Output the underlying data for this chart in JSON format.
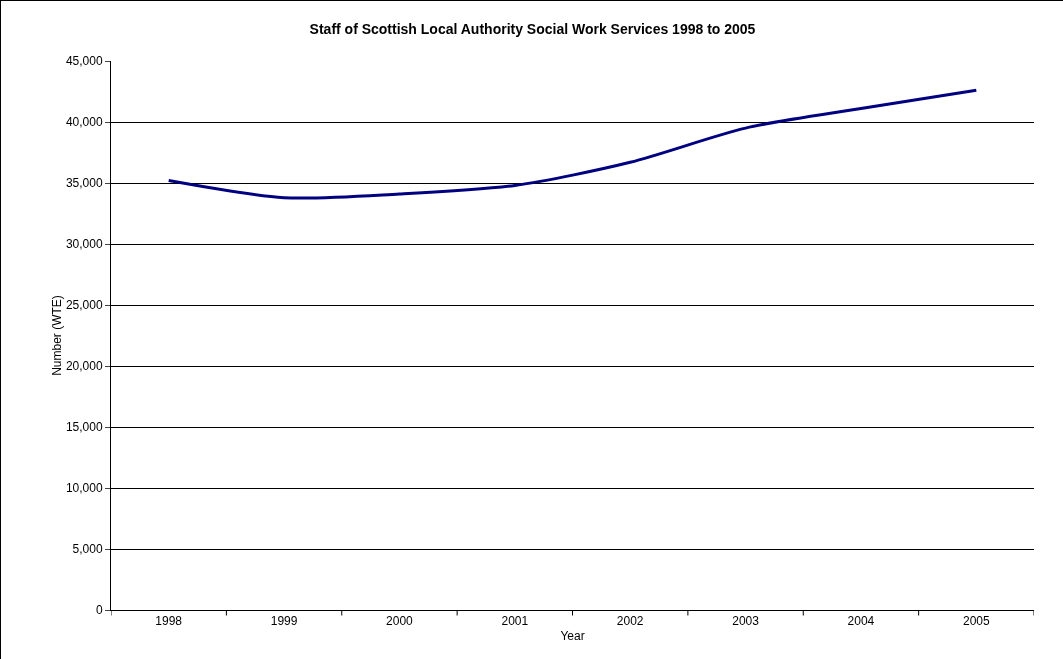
{
  "chart_data": {
    "type": "line",
    "title": "Staff of Scottish Local Authority Social Work Services 1998 to 2005",
    "xlabel": "Year",
    "ylabel": "Number (WTE)",
    "categories": [
      "1998",
      "1999",
      "2000",
      "2001",
      "2002",
      "2003",
      "2004",
      "2005"
    ],
    "series": [
      {
        "color": "#000080",
        "values": [
          35200,
          33800,
          34100,
          34800,
          36700,
          39500,
          41100,
          42600
        ]
      }
    ],
    "ylim": [
      0,
      45000
    ],
    "yticks": [
      {
        "value": 0,
        "label": "0"
      },
      {
        "value": 5000,
        "label": "5,000"
      },
      {
        "value": 10000,
        "label": "10,000"
      },
      {
        "value": 15000,
        "label": "15,000"
      },
      {
        "value": 20000,
        "label": "20,000"
      },
      {
        "value": 25000,
        "label": "25,000"
      },
      {
        "value": 30000,
        "label": "30,000"
      },
      {
        "value": 35000,
        "label": "35,000"
      },
      {
        "value": 40000,
        "label": "40,000"
      },
      {
        "value": 45000,
        "label": "45,000"
      }
    ],
    "grid": "y",
    "legend": false,
    "marker": "none",
    "line_style": "solid"
  }
}
